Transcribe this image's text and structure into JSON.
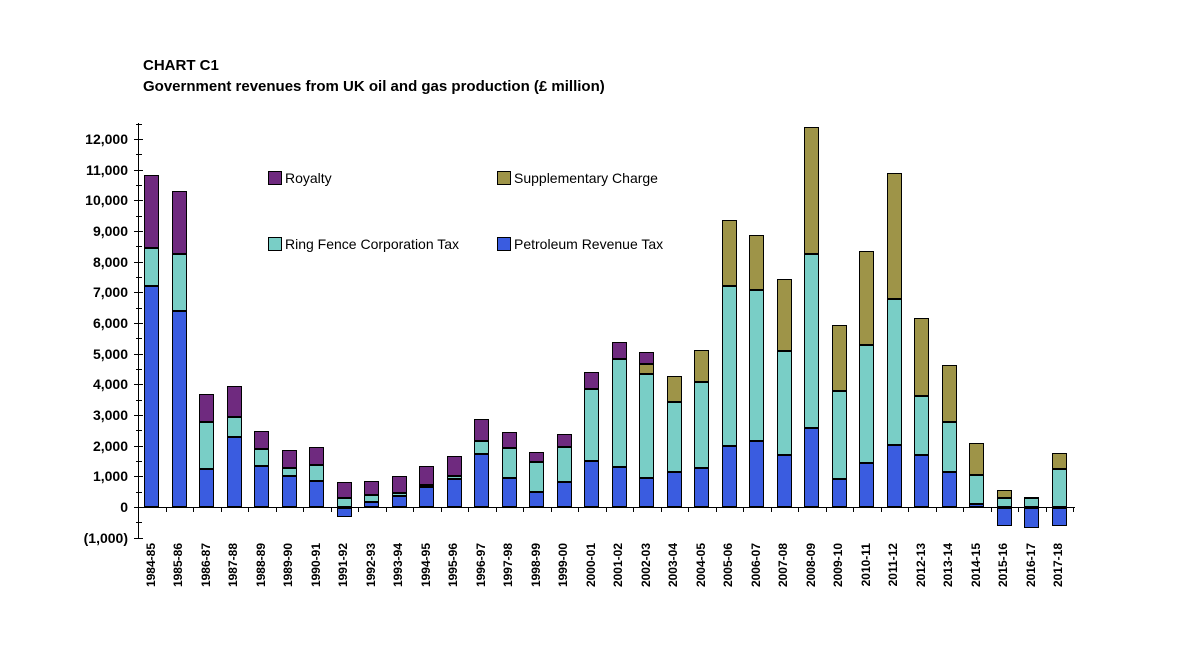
{
  "header": {
    "chart_label": "CHART C1",
    "title": "Government revenues from UK oil and gas production (£ million)"
  },
  "legend": {
    "items": [
      {
        "label": "Royalty",
        "color": "#6F2A7F"
      },
      {
        "label": "Supplementary Charge",
        "color": "#9E9448"
      },
      {
        "label": "Ring Fence Corporation Tax",
        "color": "#79CEC6"
      },
      {
        "label": "Petroleum Revenue Tax",
        "color": "#3A5CE0"
      }
    ]
  },
  "y_axis": {
    "labels": [
      "12,000",
      "11,000",
      "10,000",
      "9,000",
      "8,000",
      "7,000",
      "6,000",
      "5,000",
      "4,000",
      "3,000",
      "2,000",
      "1,000",
      "0",
      "(1,000)"
    ],
    "values": [
      12000,
      11000,
      10000,
      9000,
      8000,
      7000,
      6000,
      5000,
      4000,
      3000,
      2000,
      1000,
      0,
      -1000
    ]
  },
  "chart_data": {
    "type": "bar",
    "stacked": true,
    "title": "Government revenues from UK oil and gas production (£ million)",
    "xlabel": "",
    "ylabel": "",
    "ylim": [
      -1000,
      12500
    ],
    "y_tick_interval": 1000,
    "grid": false,
    "legend_position": "inside-top",
    "categories": [
      "1984-85",
      "1985-86",
      "1986-87",
      "1987-88",
      "1988-89",
      "1989-90",
      "1990-91",
      "1991-92",
      "1992-93",
      "1993-94",
      "1994-95",
      "1995-96",
      "1996-97",
      "1997-98",
      "1998-99",
      "1999-00",
      "2000-01",
      "2001-02",
      "2002-03",
      "2003-04",
      "2004-05",
      "2005-06",
      "2006-07",
      "2007-08",
      "2008-09",
      "2009-10",
      "2010-11",
      "2011-12",
      "2012-13",
      "2013-14",
      "2014-15",
      "2015-16",
      "2016-17",
      "2017-18"
    ],
    "series": [
      {
        "name": "Petroleum Revenue Tax",
        "color": "#3A5CE0",
        "values": [
          7200,
          6400,
          1240,
          2280,
          1350,
          1020,
          860,
          -300,
          150,
          350,
          650,
          920,
          1720,
          935,
          500,
          825,
          1510,
          1315,
          955,
          1150,
          1280,
          1990,
          2140,
          1705,
          2590,
          900,
          1445,
          2030,
          1705,
          1140,
          100,
          -600,
          -650,
          -600
        ]
      },
      {
        "name": "Ring Fence Corporation Tax",
        "color": "#79CEC6",
        "values": [
          1250,
          1850,
          1520,
          650,
          540,
          260,
          500,
          300,
          230,
          110,
          80,
          80,
          445,
          1000,
          960,
          1120,
          2330,
          3500,
          3370,
          2285,
          2785,
          5210,
          4945,
          3380,
          5650,
          2870,
          3850,
          4740,
          1915,
          1630,
          935,
          300,
          280,
          1250
        ]
      },
      {
        "name": "Supplementary Charge",
        "color": "#9E9448",
        "values": [
          0,
          0,
          0,
          0,
          0,
          0,
          0,
          0,
          0,
          0,
          0,
          0,
          0,
          0,
          0,
          0,
          0,
          0,
          330,
          835,
          1055,
          2150,
          1795,
          2340,
          4150,
          2150,
          3055,
          4130,
          2545,
          1870,
          1065,
          245,
          45,
          520
        ]
      },
      {
        "name": "Royalty",
        "color": "#6F2A7F",
        "values": [
          2360,
          2060,
          920,
          1030,
          600,
          580,
          590,
          520,
          480,
          540,
          620,
          650,
          705,
          520,
          345,
          430,
          570,
          575,
          410,
          0,
          0,
          0,
          0,
          0,
          0,
          0,
          0,
          0,
          0,
          0,
          0,
          0,
          0,
          0
        ]
      }
    ]
  }
}
